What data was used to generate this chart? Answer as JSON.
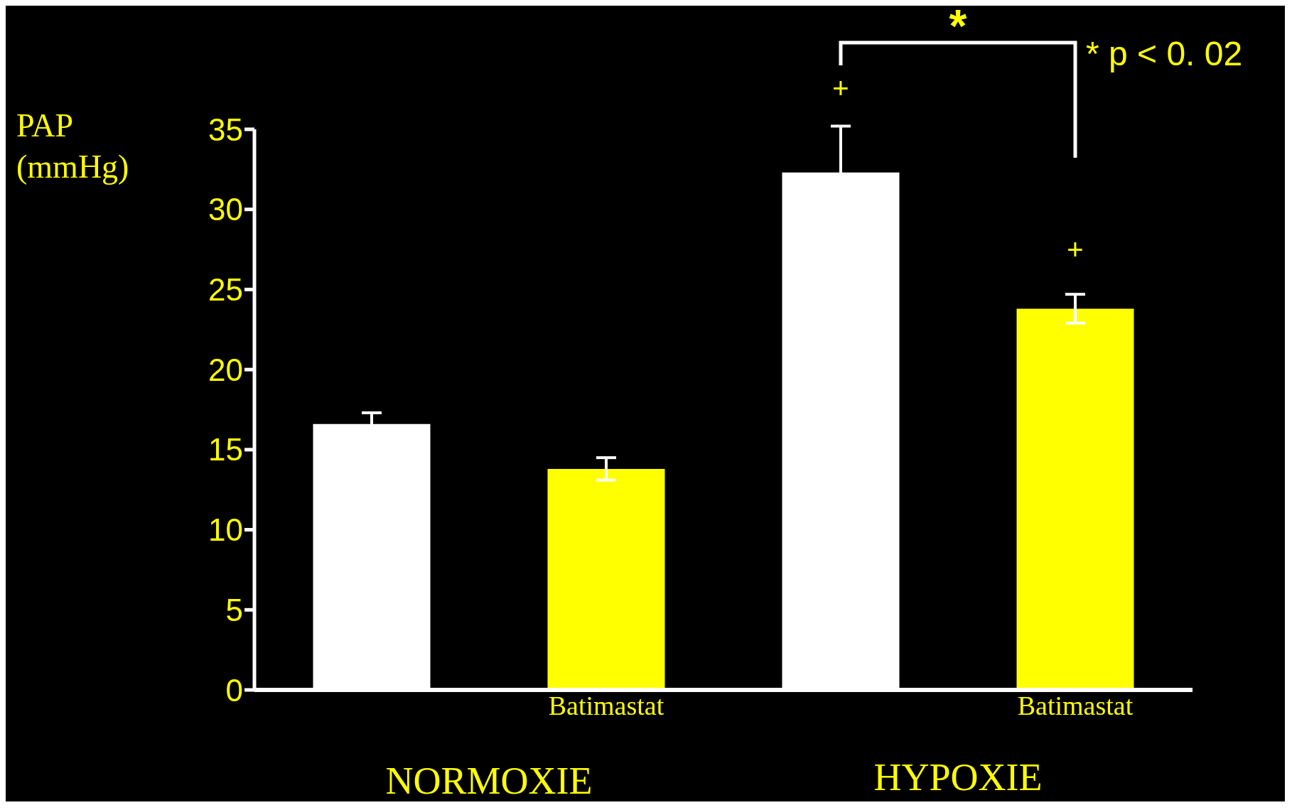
{
  "chart_data": {
    "type": "bar",
    "ylabel": "PAP (mmHg)",
    "categories": [
      null,
      "Batimastat",
      null,
      "Batimastat"
    ],
    "values": [
      16.6,
      13.8,
      32.3,
      23.8
    ],
    "errors": [
      0.7,
      0.7,
      2.9,
      0.9
    ],
    "colors": [
      "#ffffff",
      "#ffff00",
      "#ffffff",
      "#ffff00"
    ],
    "ylim": [
      0,
      35
    ],
    "yticks": [
      0,
      5,
      10,
      15,
      20,
      25,
      30,
      35
    ],
    "annotations": [
      "+",
      "+",
      "*",
      "* p < 0. 02",
      "NORMOXIE",
      "HYPOXIE"
    ],
    "grid": false,
    "legend": false
  }
}
